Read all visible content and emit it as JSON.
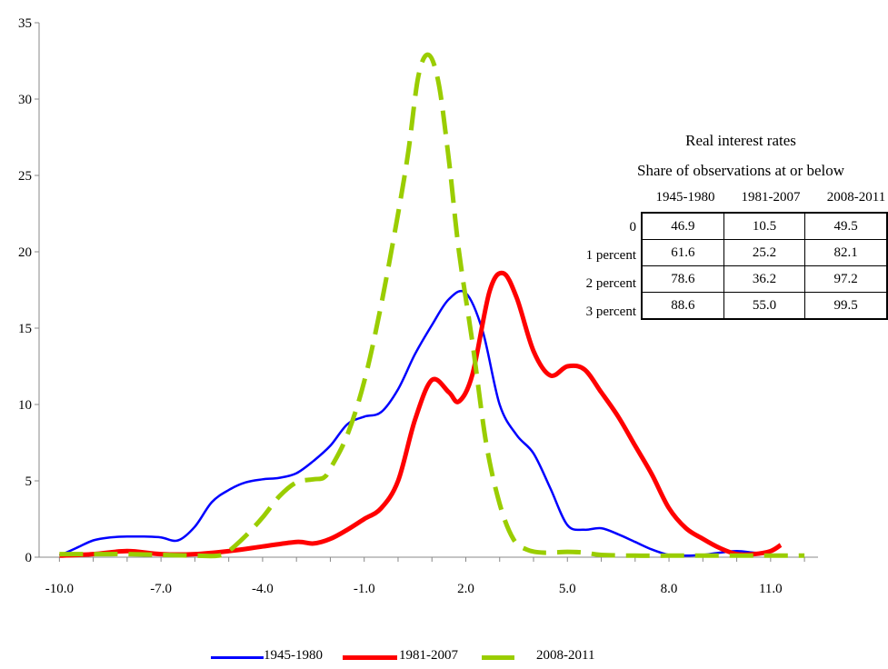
{
  "chart_data": {
    "type": "line",
    "title": "",
    "xlabel": "",
    "ylabel": "",
    "xlim": [
      -10.6,
      12.4
    ],
    "ylim": [
      0,
      35
    ],
    "xticks": [
      "-10.0",
      "-7.0",
      "-4.0",
      "-1.0",
      "2.0",
      "5.0",
      "8.0",
      "11.0"
    ],
    "yticks": [
      "0",
      "5",
      "10",
      "15",
      "20",
      "25",
      "30",
      "35"
    ],
    "grid": false,
    "legend_position": "bottom",
    "series": [
      {
        "name": "1945-1980",
        "color": "#0000ff",
        "style": "solid",
        "points": [
          [
            -10.0,
            0.1
          ],
          [
            -9.5,
            0.6
          ],
          [
            -9.0,
            1.1
          ],
          [
            -8.5,
            1.3
          ],
          [
            -8.0,
            1.35
          ],
          [
            -7.5,
            1.35
          ],
          [
            -7.0,
            1.3
          ],
          [
            -6.5,
            1.1
          ],
          [
            -6.0,
            2.0
          ],
          [
            -5.5,
            3.6
          ],
          [
            -5.0,
            4.4
          ],
          [
            -4.5,
            4.9
          ],
          [
            -4.0,
            5.1
          ],
          [
            -3.5,
            5.2
          ],
          [
            -3.0,
            5.5
          ],
          [
            -2.5,
            6.3
          ],
          [
            -2.0,
            7.3
          ],
          [
            -1.5,
            8.7
          ],
          [
            -1.0,
            9.2
          ],
          [
            -0.5,
            9.5
          ],
          [
            0.0,
            11.0
          ],
          [
            0.5,
            13.3
          ],
          [
            1.0,
            15.2
          ],
          [
            1.5,
            16.9
          ],
          [
            2.0,
            17.3
          ],
          [
            2.5,
            14.8
          ],
          [
            3.0,
            10.0
          ],
          [
            3.5,
            8.0
          ],
          [
            4.0,
            6.8
          ],
          [
            4.5,
            4.5
          ],
          [
            5.0,
            2.1
          ],
          [
            5.5,
            1.8
          ],
          [
            6.0,
            1.9
          ],
          [
            6.5,
            1.5
          ],
          [
            7.0,
            1.0
          ],
          [
            7.5,
            0.5
          ],
          [
            8.0,
            0.15
          ],
          [
            8.5,
            0.1
          ],
          [
            9.0,
            0.15
          ],
          [
            9.5,
            0.3
          ],
          [
            10.0,
            0.4
          ],
          [
            10.5,
            0.3
          ],
          [
            11.0,
            0.2
          ]
        ]
      },
      {
        "name": "1981-2007",
        "color": "#ff0000",
        "style": "solid",
        "points": [
          [
            -10.0,
            0.1
          ],
          [
            -9.0,
            0.2
          ],
          [
            -8.0,
            0.4
          ],
          [
            -7.0,
            0.2
          ],
          [
            -6.0,
            0.2
          ],
          [
            -5.0,
            0.4
          ],
          [
            -4.0,
            0.7
          ],
          [
            -3.0,
            1.0
          ],
          [
            -2.5,
            0.9
          ],
          [
            -2.0,
            1.2
          ],
          [
            -1.5,
            1.8
          ],
          [
            -1.0,
            2.5
          ],
          [
            -0.5,
            3.2
          ],
          [
            0.0,
            5.0
          ],
          [
            0.5,
            9.0
          ],
          [
            1.0,
            11.6
          ],
          [
            1.5,
            10.8
          ],
          [
            1.8,
            10.2
          ],
          [
            2.2,
            12.0
          ],
          [
            2.7,
            17.4
          ],
          [
            3.1,
            18.6
          ],
          [
            3.5,
            17.0
          ],
          [
            4.0,
            13.5
          ],
          [
            4.5,
            11.9
          ],
          [
            5.0,
            12.5
          ],
          [
            5.5,
            12.3
          ],
          [
            6.0,
            10.8
          ],
          [
            6.5,
            9.2
          ],
          [
            7.0,
            7.3
          ],
          [
            7.5,
            5.4
          ],
          [
            8.0,
            3.2
          ],
          [
            8.5,
            1.9
          ],
          [
            9.0,
            1.2
          ],
          [
            9.5,
            0.6
          ],
          [
            10.0,
            0.2
          ],
          [
            10.5,
            0.2
          ],
          [
            11.0,
            0.4
          ],
          [
            11.3,
            0.8
          ]
        ]
      },
      {
        "name": "2008-2011",
        "color": "#9acd00",
        "style": "dashed",
        "points": [
          [
            -10.0,
            0.2
          ],
          [
            -9.0,
            0.2
          ],
          [
            -8.0,
            0.2
          ],
          [
            -7.0,
            0.15
          ],
          [
            -6.0,
            0.1
          ],
          [
            -5.3,
            0.1
          ],
          [
            -5.0,
            0.4
          ],
          [
            -4.5,
            1.4
          ],
          [
            -4.0,
            2.6
          ],
          [
            -3.5,
            4.0
          ],
          [
            -3.0,
            4.9
          ],
          [
            -2.5,
            5.1
          ],
          [
            -2.2,
            5.2
          ],
          [
            -2.0,
            5.8
          ],
          [
            -1.5,
            8.0
          ],
          [
            -1.0,
            11.5
          ],
          [
            -0.5,
            16.5
          ],
          [
            0.0,
            22.5
          ],
          [
            0.3,
            26.5
          ],
          [
            0.6,
            31.5
          ],
          [
            0.9,
            32.9
          ],
          [
            1.2,
            31.0
          ],
          [
            1.5,
            26.0
          ],
          [
            1.8,
            20.0
          ],
          [
            2.2,
            14.0
          ],
          [
            2.6,
            7.5
          ],
          [
            3.0,
            3.5
          ],
          [
            3.4,
            1.2
          ],
          [
            3.8,
            0.5
          ],
          [
            4.3,
            0.3
          ],
          [
            5.0,
            0.35
          ],
          [
            5.5,
            0.3
          ],
          [
            6.0,
            0.15
          ],
          [
            7.0,
            0.1
          ],
          [
            8.0,
            0.1
          ],
          [
            9.0,
            0.1
          ],
          [
            10.0,
            0.1
          ],
          [
            11.0,
            0.1
          ],
          [
            12.0,
            0.1
          ]
        ]
      }
    ]
  },
  "inset": {
    "title_line1": "Real interest rates",
    "title_line2": "Share of observations at or below",
    "columns": [
      "1945-1980",
      "1981-2007",
      "2008-2011"
    ],
    "rows": [
      {
        "label": "0",
        "values": [
          "46.9",
          "10.5",
          "49.5"
        ]
      },
      {
        "label": "1 percent",
        "values": [
          "61.6",
          "25.2",
          "82.1"
        ]
      },
      {
        "label": "2 percent",
        "values": [
          "78.6",
          "36.2",
          "97.2"
        ]
      },
      {
        "label": "3 percent",
        "values": [
          "88.6",
          "55.0",
          "99.5"
        ]
      }
    ]
  }
}
